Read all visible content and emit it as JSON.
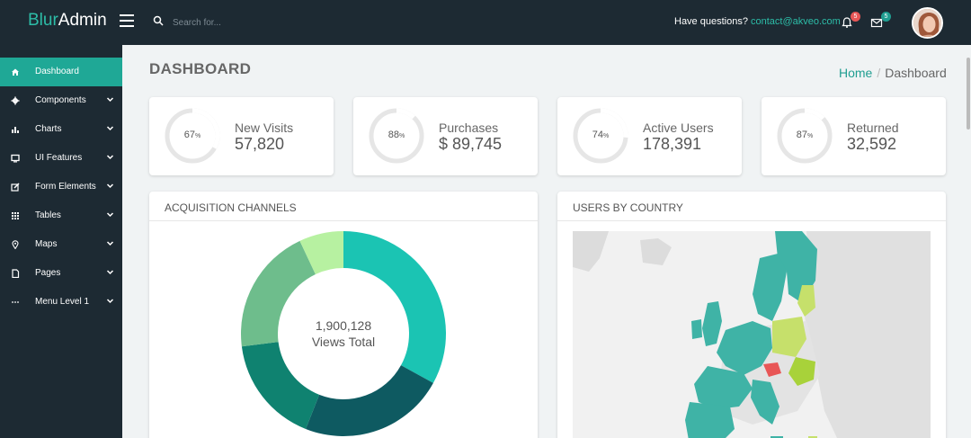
{
  "app": {
    "logo_blur": "Blur",
    "logo_admin": "Admin"
  },
  "topbar": {
    "search_placeholder": "Search for...",
    "questions_label": "Have questions?",
    "contact_email": "contact@akveo.com",
    "notifications_count": "5",
    "messages_count": "5"
  },
  "sidebar": {
    "items": [
      {
        "label": "Dashboard",
        "icon": "home-icon",
        "active": true,
        "has_chevron": false
      },
      {
        "label": "Components",
        "icon": "gear-icon",
        "active": false,
        "has_chevron": true
      },
      {
        "label": "Charts",
        "icon": "bar-chart-icon",
        "active": false,
        "has_chevron": true
      },
      {
        "label": "UI Features",
        "icon": "monitor-icon",
        "active": false,
        "has_chevron": true
      },
      {
        "label": "Form Elements",
        "icon": "edit-icon",
        "active": false,
        "has_chevron": true
      },
      {
        "label": "Tables",
        "icon": "grid-icon",
        "active": false,
        "has_chevron": true
      },
      {
        "label": "Maps",
        "icon": "map-pin-icon",
        "active": false,
        "has_chevron": true
      },
      {
        "label": "Pages",
        "icon": "file-icon",
        "active": false,
        "has_chevron": true
      },
      {
        "label": "Menu Level 1",
        "icon": "ellipsis-icon",
        "active": false,
        "has_chevron": true
      }
    ]
  },
  "main": {
    "page_title": "DASHBOARD",
    "breadcrumb_home": "Home",
    "breadcrumb_sep": "/",
    "breadcrumb_current": "Dashboard"
  },
  "stats": [
    {
      "percent": "67",
      "percent_sign": "%",
      "label": "New Visits",
      "value": "57,820"
    },
    {
      "percent": "88",
      "percent_sign": "%",
      "label": "Purchases",
      "value": "$ 89,745"
    },
    {
      "percent": "74",
      "percent_sign": "%",
      "label": "Active Users",
      "value": "178,391"
    },
    {
      "percent": "87",
      "percent_sign": "%",
      "label": "Returned",
      "value": "32,592"
    }
  ],
  "panels": {
    "acquisition_title": "ACQUISITION CHANNELS",
    "acquisition_total": "1,900,128",
    "acquisition_total_label": "Views Total",
    "country_title": "USERS BY COUNTRY"
  },
  "colors": {
    "accent": "#209e91",
    "sidebar_bg": "#1d2a33",
    "active_item": "#1fa896",
    "badge_red": "#e85656"
  },
  "chart_data": {
    "type": "pie",
    "slices": [
      {
        "value": 33,
        "color": "#1bc4b3"
      },
      {
        "value": 23,
        "color": "#0e5a61"
      },
      {
        "value": 17,
        "color": "#0f8270"
      },
      {
        "value": 20,
        "color": "#6ebd8c"
      },
      {
        "value": 7,
        "color": "#b7f1a1"
      }
    ]
  }
}
